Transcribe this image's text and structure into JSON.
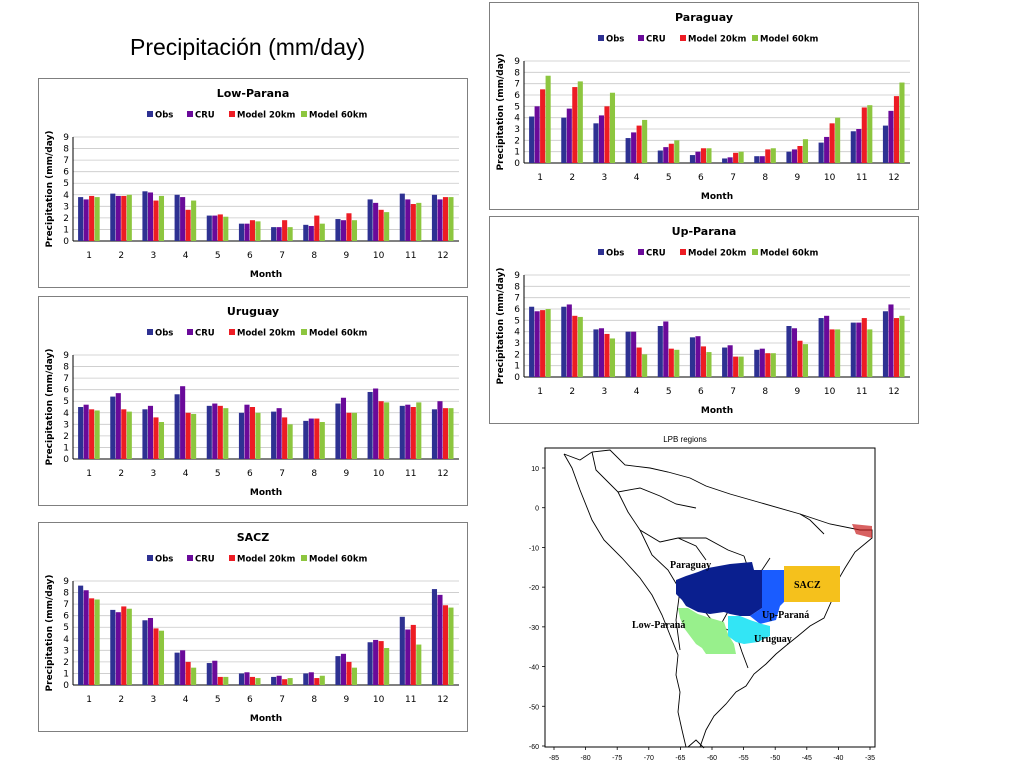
{
  "slide": {
    "title": "Precipitación (mm/day)"
  },
  "colors": {
    "Obs": "#2e3192",
    "CRU": "#6a0a9a",
    "Model 20km": "#ed1c24",
    "Model 60km": "#8dc63f"
  },
  "chart_data": [
    {
      "id": "low-parana",
      "type": "bar",
      "title": "Low-Parana",
      "xlabel": "Month",
      "ylabel": "Precipitation  (mm/day)",
      "ylim": [
        0,
        9
      ],
      "grid": true,
      "legend": "top",
      "categories": [
        "1",
        "2",
        "3",
        "4",
        "5",
        "6",
        "7",
        "8",
        "9",
        "10",
        "11",
        "12"
      ],
      "series": [
        {
          "name": "Obs",
          "values": [
            3.8,
            4.1,
            4.3,
            4.0,
            2.2,
            1.5,
            1.2,
            1.4,
            1.9,
            3.6,
            4.1,
            4.0
          ]
        },
        {
          "name": "CRU",
          "values": [
            3.6,
            3.9,
            4.2,
            3.8,
            2.2,
            1.5,
            1.2,
            1.3,
            1.8,
            3.3,
            3.6,
            3.6
          ]
        },
        {
          "name": "Model 20km",
          "values": [
            3.9,
            3.9,
            3.5,
            2.7,
            2.3,
            1.8,
            1.8,
            2.2,
            2.4,
            2.7,
            3.2,
            3.8
          ]
        },
        {
          "name": "Model 60km",
          "values": [
            3.8,
            4.0,
            3.9,
            3.5,
            2.1,
            1.7,
            1.2,
            1.5,
            1.8,
            2.5,
            3.3,
            3.8
          ]
        }
      ]
    },
    {
      "id": "uruguay",
      "type": "bar",
      "title": "Uruguay",
      "xlabel": "Month",
      "ylabel": "Precipitation  (mm/day)",
      "ylim": [
        0,
        9
      ],
      "grid": true,
      "legend": "top",
      "categories": [
        "1",
        "2",
        "3",
        "4",
        "5",
        "6",
        "7",
        "8",
        "9",
        "10",
        "11",
        "12"
      ],
      "series": [
        {
          "name": "Obs",
          "values": [
            4.5,
            5.4,
            4.3,
            5.6,
            4.6,
            4.0,
            4.1,
            3.3,
            4.8,
            5.8,
            4.6,
            4.3
          ]
        },
        {
          "name": "CRU",
          "values": [
            4.7,
            5.7,
            4.6,
            6.3,
            4.8,
            4.7,
            4.4,
            3.5,
            5.3,
            6.1,
            4.7,
            5.0
          ]
        },
        {
          "name": "Model 20km",
          "values": [
            4.3,
            4.3,
            3.6,
            4.0,
            4.6,
            4.5,
            3.6,
            3.5,
            4.0,
            5.0,
            4.5,
            4.4
          ]
        },
        {
          "name": "Model 60km",
          "values": [
            4.2,
            4.1,
            3.2,
            3.9,
            4.4,
            4.0,
            3.0,
            3.2,
            4.0,
            4.9,
            4.9,
            4.4
          ]
        }
      ]
    },
    {
      "id": "sacz",
      "type": "bar",
      "title": "SACZ",
      "xlabel": "Month",
      "ylabel": "Precipitation  (mm/day)",
      "ylim": [
        0,
        9
      ],
      "grid": true,
      "legend": "top",
      "categories": [
        "1",
        "2",
        "3",
        "4",
        "5",
        "6",
        "7",
        "8",
        "9",
        "10",
        "11",
        "12"
      ],
      "series": [
        {
          "name": "Obs",
          "values": [
            8.6,
            6.5,
            5.6,
            2.8,
            1.9,
            1.0,
            0.7,
            1.0,
            2.5,
            3.7,
            5.9,
            8.3
          ]
        },
        {
          "name": "CRU",
          "values": [
            8.2,
            6.3,
            5.8,
            3.0,
            2.1,
            1.1,
            0.8,
            1.1,
            2.7,
            3.9,
            4.8,
            7.8
          ]
        },
        {
          "name": "Model 20km",
          "values": [
            7.5,
            6.8,
            4.9,
            2.0,
            0.7,
            0.7,
            0.5,
            0.6,
            2.0,
            3.8,
            5.2,
            6.9
          ]
        },
        {
          "name": "Model 60km",
          "values": [
            7.4,
            6.6,
            4.7,
            1.5,
            0.7,
            0.6,
            0.6,
            0.8,
            1.5,
            3.2,
            3.5,
            6.7
          ]
        }
      ]
    },
    {
      "id": "paraguay",
      "type": "bar",
      "title": "Paraguay",
      "xlabel": "Month",
      "ylabel": "Precipitation  (mm/day)",
      "ylim": [
        0,
        9
      ],
      "grid": true,
      "legend": "top",
      "categories": [
        "1",
        "2",
        "3",
        "4",
        "5",
        "6",
        "7",
        "8",
        "9",
        "10",
        "11",
        "12"
      ],
      "series": [
        {
          "name": "Obs",
          "values": [
            4.1,
            4.0,
            3.5,
            2.2,
            1.1,
            0.7,
            0.4,
            0.6,
            1.0,
            1.8,
            2.8,
            3.3
          ]
        },
        {
          "name": "CRU",
          "values": [
            5.0,
            4.8,
            4.2,
            2.7,
            1.4,
            1.0,
            0.5,
            0.6,
            1.2,
            2.3,
            3.0,
            4.6
          ]
        },
        {
          "name": "Model 20km",
          "values": [
            6.5,
            6.7,
            5.0,
            3.3,
            1.7,
            1.3,
            0.9,
            1.2,
            1.5,
            3.5,
            4.9,
            5.9
          ]
        },
        {
          "name": "Model 60km",
          "values": [
            7.7,
            7.2,
            6.2,
            3.8,
            2.0,
            1.3,
            1.0,
            1.3,
            2.1,
            4.0,
            5.1,
            7.1
          ]
        }
      ]
    },
    {
      "id": "up-parana",
      "type": "bar",
      "title": "Up-Parana",
      "xlabel": "Month",
      "ylabel": "Precipitation  (mm/day)",
      "ylim": [
        0,
        9
      ],
      "grid": true,
      "legend": "top",
      "categories": [
        "1",
        "2",
        "3",
        "4",
        "5",
        "6",
        "7",
        "8",
        "9",
        "10",
        "11",
        "12"
      ],
      "series": [
        {
          "name": "Obs",
          "values": [
            6.2,
            6.2,
            4.2,
            4.0,
            4.5,
            3.5,
            2.6,
            2.4,
            4.5,
            5.2,
            4.8,
            5.8
          ]
        },
        {
          "name": "CRU",
          "values": [
            5.8,
            6.4,
            4.3,
            4.0,
            4.9,
            3.6,
            2.8,
            2.5,
            4.3,
            5.4,
            4.8,
            6.4
          ]
        },
        {
          "name": "Model 20km",
          "values": [
            5.9,
            5.4,
            3.8,
            2.6,
            2.5,
            2.7,
            1.8,
            2.1,
            3.2,
            4.2,
            5.2,
            5.2
          ]
        },
        {
          "name": "Model 60km",
          "values": [
            6.0,
            5.3,
            3.4,
            2.0,
            2.4,
            2.2,
            1.8,
            2.1,
            2.9,
            4.2,
            4.2,
            5.4
          ]
        }
      ]
    }
  ],
  "map": {
    "title": "LPB regions",
    "x_ticks": [
      "-85",
      "-80",
      "-75",
      "-70",
      "-65",
      "-60",
      "-55",
      "-50",
      "-45",
      "-40",
      "-35"
    ],
    "y_ticks": [
      "10",
      "0",
      "-10",
      "-20",
      "-30",
      "-40",
      "-50",
      "-60"
    ],
    "regions": [
      {
        "name": "Paraguay",
        "color": "#0a1f8f"
      },
      {
        "name": "SACZ",
        "color": "#f5c11c"
      },
      {
        "name": "Up-Paraná",
        "color": "#1a5cff"
      },
      {
        "name": "Low-Paraná",
        "color": "#98f08c"
      },
      {
        "name": "Uruguay",
        "color": "#33e5f5"
      }
    ]
  }
}
